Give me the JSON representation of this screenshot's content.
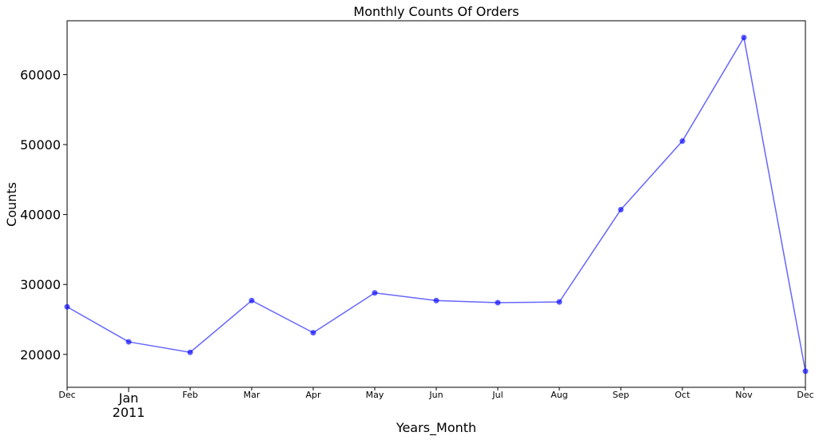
{
  "chart_data": {
    "type": "line",
    "title": "Monthly Counts Of Orders",
    "xlabel": "Years_Month",
    "ylabel": "Counts",
    "categories": [
      "2010-12",
      "2011-01",
      "2011-02",
      "2011-03",
      "2011-04",
      "2011-05",
      "2011-06",
      "2011-07",
      "2011-08",
      "2011-09",
      "2011-10",
      "2011-11",
      "2011-12"
    ],
    "x_tick_labels": [
      "Dec",
      "Jan",
      "Feb",
      "Mar",
      "Apr",
      "May",
      "Jun",
      "Jul",
      "Aug",
      "Sep",
      "Oct",
      "Nov",
      "Dec"
    ],
    "year_label": "2011",
    "series": [
      {
        "values": [
          26800,
          21800,
          20300,
          27700,
          23100,
          28800,
          27700,
          27400,
          27500,
          40700,
          50500,
          65300,
          17600
        ],
        "color": "#0000ff"
      }
    ],
    "ylim": [
      15300,
      67700
    ],
    "y_ticks": [
      20000,
      30000,
      40000,
      50000,
      60000
    ],
    "grid": false,
    "legend": "none"
  }
}
